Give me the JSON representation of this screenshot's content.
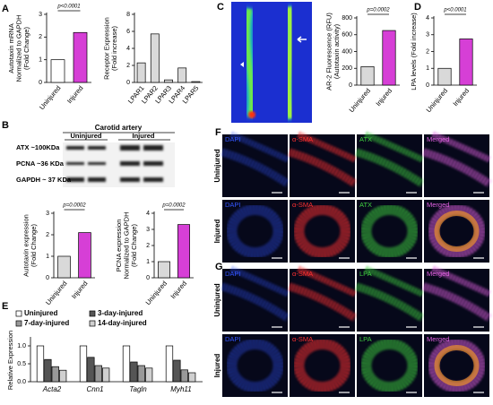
{
  "panel_labels": [
    "A",
    "B",
    "C",
    "D",
    "E",
    "F",
    "G"
  ],
  "blot": {
    "title": "Carotid artery",
    "groups": [
      "Uninjured",
      "Injured"
    ],
    "rows": [
      "ATX ~100KDa",
      "PCNA ~36 KDa",
      "GAPDH ~ 37 KDa"
    ]
  },
  "micrographs": [
    {
      "rows": [
        "Uninjured",
        "Injured"
      ],
      "columns": [
        "DAPI",
        "α-SMA",
        "ATX",
        "Merged"
      ],
      "colors": [
        "#3355ff",
        "#ff3030",
        "#40d040",
        "#e060e0"
      ]
    },
    {
      "rows": [
        "Uninjured",
        "Injured"
      ],
      "columns": [
        "DAPI",
        "α-SMA",
        "LPA",
        "Merged"
      ],
      "colors": [
        "#3355ff",
        "#ff3030",
        "#40d040",
        "#e060e0"
      ]
    }
  ],
  "chart_data": [
    {
      "type": "bar",
      "ylabel": [
        "Autotaxin mRNA",
        "Normalized to GAPDH",
        "(Fold Change)"
      ],
      "categories": [
        "Uninjured",
        "Injured"
      ],
      "values": [
        1.0,
        2.2
      ],
      "colors": [
        "#ffffff",
        "#d63fd6"
      ],
      "ylim": [
        0,
        3
      ],
      "yticks": [
        0,
        1,
        2,
        3
      ],
      "annotation": "p<0.0001"
    },
    {
      "type": "bar",
      "ylabel": [
        "Receptor Expression",
        "(Fold increase)"
      ],
      "categories": [
        "LPAR1",
        "LPAR2",
        "LPAR3",
        "LPAR4",
        "LPAR5"
      ],
      "values": [
        2.3,
        5.7,
        0.3,
        1.7,
        0.1
      ],
      "colors": [
        "#d9d9d9",
        "#d9d9d9",
        "#d9d9d9",
        "#d9d9d9",
        "#d9d9d9"
      ],
      "ylim": [
        0,
        8
      ],
      "yticks": [
        0,
        2,
        4,
        6,
        8
      ]
    },
    {
      "type": "bar",
      "ylabel": [
        "AR-2 Fluorescence (RFU)",
        "(Autotaxin activity)"
      ],
      "categories": [
        "Uninjured",
        "Injured"
      ],
      "values": [
        220,
        650
      ],
      "colors": [
        "#d9d9d9",
        "#d63fd6"
      ],
      "ylim": [
        0,
        800
      ],
      "yticks": [
        0,
        200,
        400,
        600,
        800
      ],
      "annotation": "p=0.0002"
    },
    {
      "type": "bar",
      "ylabel": [
        "LPA levels (Fold increase)"
      ],
      "categories": [
        "Uninjured",
        "Injured"
      ],
      "values": [
        1.0,
        2.75
      ],
      "colors": [
        "#d9d9d9",
        "#d63fd6"
      ],
      "ylim": [
        0,
        4
      ],
      "yticks": [
        0,
        1,
        2,
        3,
        4
      ],
      "annotation": "p<0.0001"
    },
    {
      "type": "bar",
      "ylabel": [
        "Autotaxin expression",
        "(Fold Change)"
      ],
      "categories": [
        "Uninjured",
        "Injured"
      ],
      "values": [
        1.0,
        2.1
      ],
      "colors": [
        "#d9d9d9",
        "#d63fd6"
      ],
      "ylim": [
        0,
        3
      ],
      "yticks": [
        0,
        1,
        2,
        3
      ],
      "annotation": "p=0.0002"
    },
    {
      "type": "bar",
      "ylabel": [
        "PCNA expression",
        "Normalized to GAPDH",
        "(Fold Change)"
      ],
      "categories": [
        "Uninjured",
        "Injured"
      ],
      "values": [
        1.0,
        3.3
      ],
      "colors": [
        "#d9d9d9",
        "#d63fd6"
      ],
      "ylim": [
        0,
        4
      ],
      "yticks": [
        0,
        1,
        2,
        3,
        4
      ],
      "annotation": "p=0.0002"
    },
    {
      "type": "grouped-bar",
      "ylabel": [
        "Relative  Expression"
      ],
      "categories": [
        "Acta2",
        "Cnn1",
        "Tagln",
        "Myh11"
      ],
      "series": [
        {
          "name": "Uninjured",
          "color": "#ffffff",
          "values": [
            1.0,
            1.0,
            1.0,
            1.0
          ]
        },
        {
          "name": "3-day-injured",
          "color": "#555555",
          "values": [
            0.62,
            0.68,
            0.55,
            0.6
          ]
        },
        {
          "name": "7-day-injured",
          "color": "#999999",
          "values": [
            0.42,
            0.45,
            0.45,
            0.33
          ]
        },
        {
          "name": "14-day-injured",
          "color": "#d0d0d0",
          "values": [
            0.32,
            0.38,
            0.38,
            0.25
          ]
        }
      ],
      "ylim": [
        0,
        1.2
      ],
      "yticks": [
        {
          "value": 0,
          "label": "0.0"
        },
        {
          "value": 0.5,
          "label": "0.5"
        },
        {
          "value": 1,
          "label": "1.0"
        }
      ]
    }
  ]
}
